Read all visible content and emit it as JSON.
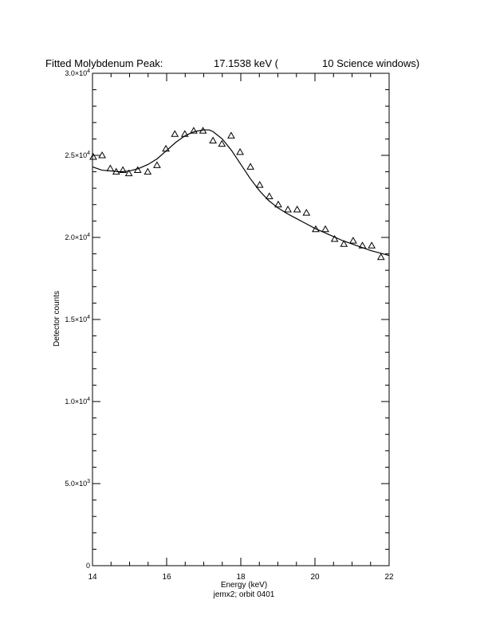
{
  "header": {
    "title_text": "Fitted Molybdenum Peak:",
    "peak_value": "17.1538 keV (",
    "windows_text": "10 Science windows)"
  },
  "footer": {
    "xlabel": "Energy (keV)",
    "subtitle": "jemx2; orbit 0401"
  },
  "chart_data": {
    "type": "scatter",
    "title": "Fitted Molybdenum Peak:       17.1538 keV (       10 Science windows)",
    "xlabel": "Energy (keV)",
    "ylabel": "Detector counts",
    "xlim": [
      14,
      22
    ],
    "ylim": [
      0,
      30000
    ],
    "x_ticks": [
      14,
      16,
      18,
      20,
      22
    ],
    "x_tick_labels": [
      "14",
      "16",
      "18",
      "20",
      "22"
    ],
    "y_ticks": [
      0,
      5000,
      10000,
      15000,
      20000,
      25000,
      30000
    ],
    "y_tick_labels": [
      {
        "mantissa": "0",
        "exp": ""
      },
      {
        "mantissa": "5.0×10",
        "exp": "3"
      },
      {
        "mantissa": "1.0×10",
        "exp": "4"
      },
      {
        "mantissa": "1.5×10",
        "exp": "4"
      },
      {
        "mantissa": "2.0×10",
        "exp": "4"
      },
      {
        "mantissa": "2.5×10",
        "exp": "4"
      },
      {
        "mantissa": "3.0×10",
        "exp": "4"
      }
    ],
    "grid": false,
    "series": [
      {
        "marker": "triangle",
        "x": [
          14.02,
          14.26,
          14.48,
          14.64,
          14.82,
          14.98,
          15.22,
          15.49,
          15.74,
          15.98,
          16.22,
          16.49,
          16.73,
          16.98,
          17.25,
          17.49,
          17.74,
          17.98,
          18.26,
          18.51,
          18.77,
          19.01,
          19.27,
          19.52,
          19.77,
          20.02,
          20.28,
          20.53,
          20.78,
          21.03,
          21.28,
          21.53,
          21.78
        ],
        "y": [
          24900,
          25000,
          24200,
          24000,
          24100,
          23900,
          24100,
          24000,
          24400,
          25400,
          26300,
          26300,
          26500,
          26500,
          25900,
          25700,
          26200,
          25200,
          24300,
          23200,
          22500,
          22000,
          21700,
          21700,
          21500,
          20500,
          20500,
          19900,
          19600,
          19800,
          19500,
          19500,
          18800
        ]
      },
      {
        "marker": "line",
        "x": [
          14.0,
          14.25,
          14.5,
          14.75,
          15.0,
          15.25,
          15.5,
          15.75,
          16.0,
          16.25,
          16.5,
          16.75,
          17.0,
          17.15,
          17.25,
          17.5,
          17.75,
          18.0,
          18.25,
          18.5,
          18.75,
          19.0,
          19.25,
          19.5,
          19.75,
          20.0,
          20.25,
          20.5,
          20.75,
          21.0,
          21.25,
          21.5,
          21.75,
          22.0
        ],
        "y": [
          24300,
          24100,
          24050,
          24000,
          24050,
          24200,
          24450,
          24800,
          25300,
          25800,
          26200,
          26450,
          26550,
          26550,
          26450,
          26000,
          25300,
          24450,
          23600,
          22850,
          22250,
          21800,
          21450,
          21150,
          20850,
          20550,
          20300,
          20050,
          19800,
          19600,
          19400,
          19200,
          19050,
          18900
        ]
      }
    ]
  }
}
